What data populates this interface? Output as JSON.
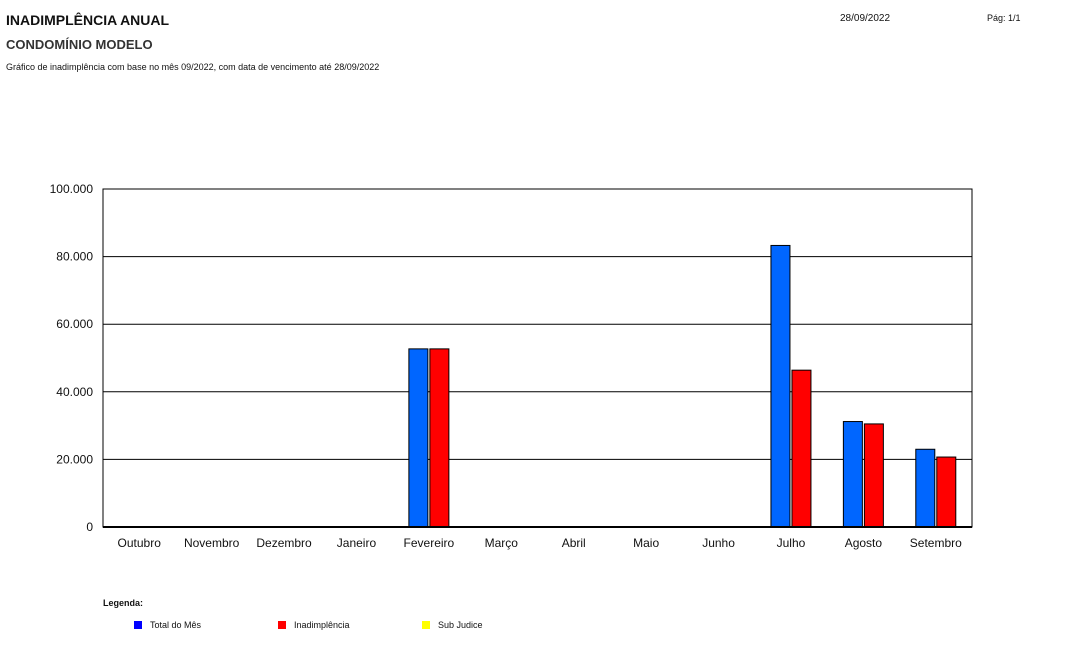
{
  "header": {
    "title": "INADIMPLÊNCIA ANUAL",
    "date": "28/09/2022",
    "page": "Pág: 1/1",
    "subtitle": "CONDOMÍNIO MODELO",
    "description": "Gráfico de inadimplência com base no mês 09/2022, com data de vencimento até 28/09/2022"
  },
  "legend": {
    "title": "Legenda:",
    "items": [
      {
        "label": "Total do Mês",
        "color": "#0000ff"
      },
      {
        "label": "Inadimplência",
        "color": "#ff0000"
      },
      {
        "label": "Sub Judice",
        "color": "#ffff00"
      }
    ]
  },
  "chart_data": {
    "type": "bar",
    "categories": [
      "Outubro",
      "Novembro",
      "Dezembro",
      "Janeiro",
      "Fevereiro",
      "Março",
      "Abril",
      "Maio",
      "Junho",
      "Julho",
      "Agosto",
      "Setembro"
    ],
    "series": [
      {
        "name": "Total do Mês",
        "color": "#0066ff",
        "values": [
          0,
          0,
          0,
          0,
          52700,
          0,
          0,
          0,
          0,
          83300,
          31200,
          23000
        ]
      },
      {
        "name": "Inadimplência",
        "color": "#ff0000",
        "values": [
          0,
          0,
          0,
          0,
          52700,
          0,
          0,
          0,
          0,
          46400,
          30500,
          20700
        ]
      },
      {
        "name": "Sub Judice",
        "color": "#ffff00",
        "values": [
          0,
          0,
          0,
          0,
          0,
          0,
          0,
          0,
          0,
          0,
          0,
          0
        ]
      }
    ],
    "y_ticks": [
      "0",
      "20.000",
      "40.000",
      "60.000",
      "80.000",
      "100.000"
    ],
    "ylim": [
      0,
      100000
    ],
    "grid": true,
    "legend_position": "bottom-left"
  }
}
